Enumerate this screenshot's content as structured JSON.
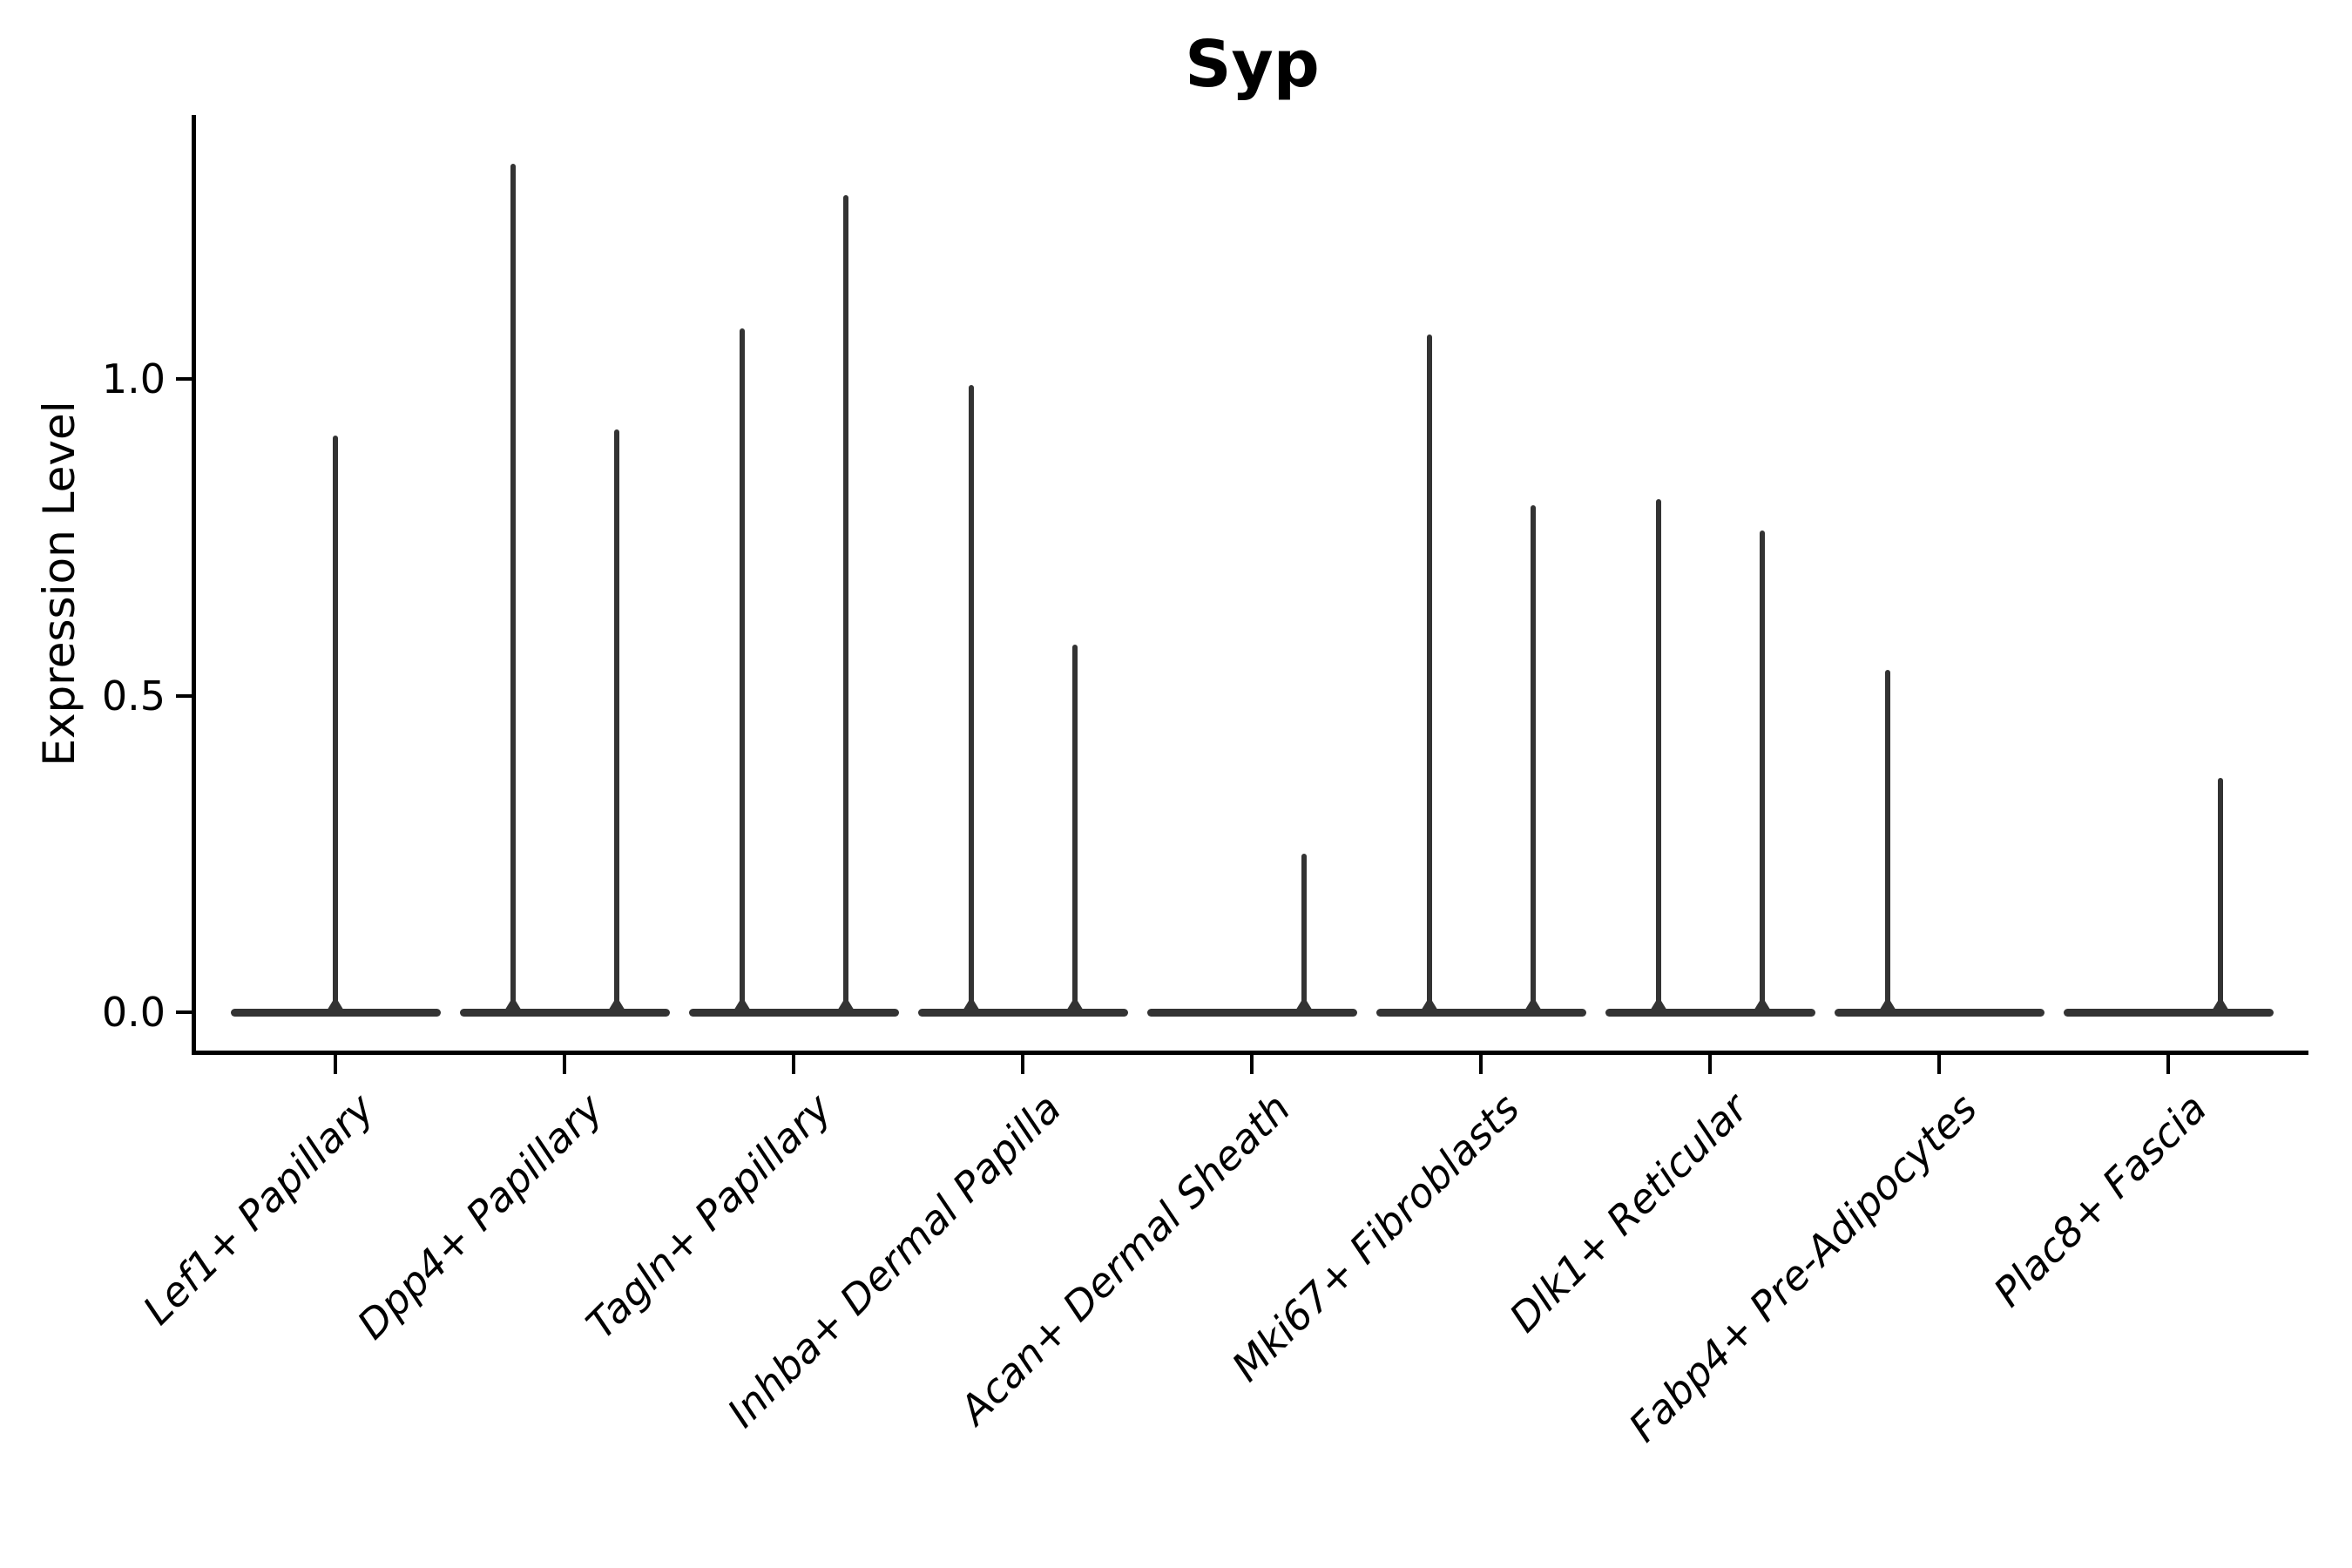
{
  "title": "Syp",
  "chart_data": {
    "type": "violin",
    "title": "Syp",
    "xlabel": "",
    "ylabel": "Expression Level",
    "ylim": [
      -0.06,
      1.42
    ],
    "yticks": [
      0.0,
      0.5,
      1.0
    ],
    "ytick_labels": [
      "0.0",
      "0.5",
      "1.0"
    ],
    "grid": false,
    "legend": "none",
    "violin_color": "#333333",
    "axis_color": "#000000",
    "categories": [
      "Lef1+ Papillary",
      "Dpp4+ Papillary",
      "Tagln+ Papillary",
      "Inhba+ Dermal Papilla",
      "Acan+ Dermal Sheath",
      "Mki67+ Fibroblasts",
      "Dlk1+ Reticular",
      "Fabp4+ Pre-Adipocytes",
      "Plac8+ Fascia"
    ],
    "violins": [
      {
        "category": "Lef1+ Papillary",
        "baseline_value": 0,
        "spikes": [
          {
            "position": "center",
            "max": 0.91
          }
        ]
      },
      {
        "category": "Dpp4+ Papillary",
        "baseline_value": 0,
        "spikes": [
          {
            "position": "left",
            "max": 1.34
          },
          {
            "position": "right",
            "max": 0.92
          }
        ]
      },
      {
        "category": "Tagln+ Papillary",
        "baseline_value": 0,
        "spikes": [
          {
            "position": "left",
            "max": 1.08
          },
          {
            "position": "right",
            "max": 1.29
          }
        ]
      },
      {
        "category": "Inhba+ Dermal Papilla",
        "baseline_value": 0,
        "spikes": [
          {
            "position": "left",
            "max": 0.99
          },
          {
            "position": "right",
            "max": 0.58
          }
        ]
      },
      {
        "category": "Acan+ Dermal Sheath",
        "baseline_value": 0,
        "spikes": [
          {
            "position": "right",
            "max": 0.25
          }
        ]
      },
      {
        "category": "Mki67+ Fibroblasts",
        "baseline_value": 0,
        "spikes": [
          {
            "position": "left",
            "max": 1.07
          },
          {
            "position": "right",
            "max": 0.8
          }
        ]
      },
      {
        "category": "Dlk1+ Reticular",
        "baseline_value": 0,
        "spikes": [
          {
            "position": "left",
            "max": 0.81
          },
          {
            "position": "right",
            "max": 0.76
          }
        ]
      },
      {
        "category": "Fabp4+ Pre-Adipocytes",
        "baseline_value": 0,
        "spikes": [
          {
            "position": "left",
            "max": 0.54
          }
        ]
      },
      {
        "category": "Plac8+ Fascia",
        "baseline_value": 0,
        "spikes": [
          {
            "position": "right",
            "max": 0.37
          }
        ]
      }
    ]
  }
}
